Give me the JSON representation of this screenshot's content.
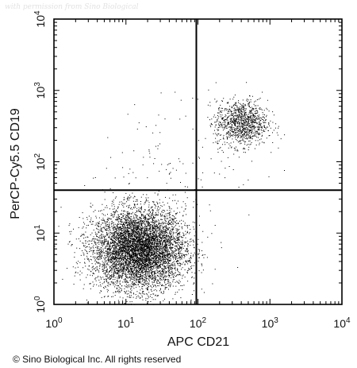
{
  "watermark": "with permission from Sino Biological",
  "copyright": "© Sino Biological Inc. All rights reserved",
  "chart_data": {
    "type": "scatter",
    "title": "",
    "xlabel": "APC CD21",
    "ylabel": "PerCP-Cy5.5 CD19",
    "xscale": "log",
    "yscale": "log",
    "xlim": [
      1,
      10000
    ],
    "ylim": [
      1,
      10000
    ],
    "xticks": [
      {
        "value": 1,
        "base": "10",
        "exp": "0"
      },
      {
        "value": 10,
        "base": "10",
        "exp": "1"
      },
      {
        "value": 100,
        "base": "10",
        "exp": "2"
      },
      {
        "value": 1000,
        "base": "10",
        "exp": "3"
      },
      {
        "value": 10000,
        "base": "10",
        "exp": "4"
      }
    ],
    "yticks": [
      {
        "value": 1,
        "base": "10",
        "exp": "0"
      },
      {
        "value": 10,
        "base": "10",
        "exp": "1"
      },
      {
        "value": 100,
        "base": "10",
        "exp": "2"
      },
      {
        "value": 1000,
        "base": "10",
        "exp": "3"
      },
      {
        "value": 10000,
        "base": "10",
        "exp": "4"
      }
    ],
    "gates": {
      "x": 95,
      "y": 40
    },
    "point_color": "#000000",
    "populations": [
      {
        "center": [
          15,
          6
        ],
        "spread_log": [
          0.32,
          0.28
        ],
        "count": 6500
      },
      {
        "center": [
          400,
          350
        ],
        "spread_log": [
          0.18,
          0.16
        ],
        "count": 1100
      },
      {
        "center": [
          60,
          100
        ],
        "spread_log": [
          0.55,
          0.45
        ],
        "count": 120
      }
    ]
  }
}
